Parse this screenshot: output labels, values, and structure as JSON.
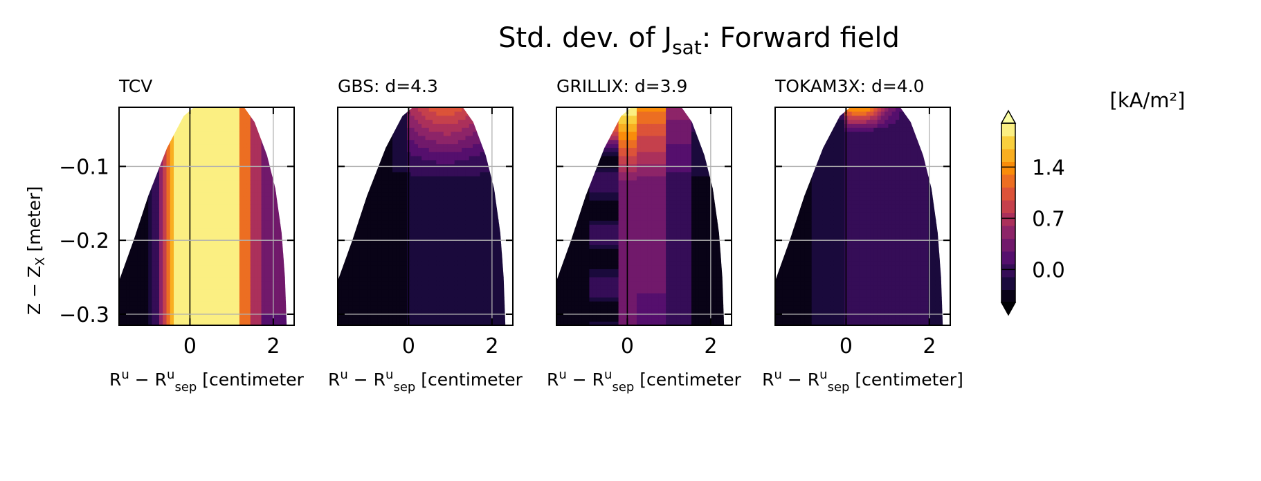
{
  "figure": {
    "title": "Std. dev. of J",
    "title_sub": "sat",
    "title_suffix": ": Forward field"
  },
  "colorbar": {
    "label": "[kA/m²]",
    "colormap": "inferno",
    "extend": "both",
    "ticks": [
      "1.4",
      "0.7",
      "0.0"
    ],
    "tick_values": [
      1.4,
      0.7,
      0.0
    ],
    "range": [
      -0.45,
      2.0
    ],
    "levels": 14
  },
  "axes_text": {
    "ylabel_main": "Z − Z",
    "ylabel_sub": "X",
    "ylabel_unit": " [meter]",
    "xlabel_main": "R",
    "xlabel_sup": "u",
    "xlabel_mid": " − R",
    "xlabel_sup2": "u",
    "xlabel_sub2": "sep",
    "xlabel_unit": " [centimeter]",
    "xlabel_unit_clipped": " [centimeter",
    "xticks": [
      "0",
      "2"
    ],
    "yticks": [
      "−0.1",
      "−0.2",
      "−0.3"
    ]
  },
  "chart_data": [
    {
      "type": "heatmap",
      "title": "TCV",
      "xlim": [
        -1.7,
        2.5
      ],
      "ylim": [
        -0.315,
        -0.02
      ],
      "x_ticks": [
        0,
        2
      ],
      "y_ticks": [
        -0.1,
        -0.2,
        -0.3
      ],
      "grid": true,
      "values_description_kA_m2": {
        "x_cm": [
          -1.5,
          -0.8,
          -0.5,
          0.0,
          0.5,
          1.0,
          1.3,
          1.6,
          2.0
        ],
        "z_m_-0.25_row": [
          -0.45,
          -0.1,
          1.3,
          2.0,
          2.0,
          2.0,
          1.2,
          0.5,
          0.2
        ]
      }
    },
    {
      "type": "heatmap",
      "title": "GBS: d=4.3",
      "xlim": [
        -1.7,
        2.5
      ],
      "ylim": [
        -0.315,
        -0.02
      ],
      "x_ticks": [
        0,
        2
      ],
      "y_ticks": [
        -0.1,
        -0.2,
        -0.3
      ],
      "grid": true,
      "values_description_kA_m2": {
        "x_cm": [
          -1.5,
          -0.5,
          0.0,
          0.5,
          1.0,
          2.0
        ],
        "z_m_-0.05_row": [
          -0.45,
          -0.3,
          0.3,
          0.8,
          0.8,
          0.3
        ],
        "z_m_-0.25_row": [
          -0.45,
          -0.4,
          -0.2,
          -0.15,
          -0.1,
          -0.2
        ]
      }
    },
    {
      "type": "heatmap",
      "title": "GRILLIX: d=3.9",
      "xlim": [
        -1.7,
        2.5
      ],
      "ylim": [
        -0.315,
        -0.02
      ],
      "x_ticks": [
        0,
        2
      ],
      "y_ticks": [
        -0.1,
        -0.2,
        -0.3
      ],
      "grid": true,
      "values_description_kA_m2": {
        "x_cm": [
          -1.5,
          -0.5,
          0.0,
          0.3,
          0.8,
          1.5,
          2.0
        ],
        "z_m_-0.05_row": [
          -0.4,
          0.5,
          2.0,
          1.4,
          1.0,
          0.5,
          0.2
        ],
        "z_m_-0.25_row": [
          -0.45,
          0.3,
          0.4,
          0.6,
          0.3,
          -0.1,
          -0.3
        ]
      }
    },
    {
      "type": "heatmap",
      "title": "TOKAM3X: d=4.0",
      "xlim": [
        -1.7,
        2.5
      ],
      "ylim": [
        -0.315,
        -0.02
      ],
      "x_ticks": [
        0,
        2
      ],
      "y_ticks": [
        -0.1,
        -0.2,
        -0.3
      ],
      "grid": true,
      "values_description_kA_m2": {
        "x_cm": [
          -1.5,
          0.0,
          0.3,
          1.0,
          2.0
        ],
        "z_m_-0.03_row": [
          -0.4,
          1.4,
          1.2,
          0.5,
          0.1
        ],
        "z_m_-0.25_row": [
          -0.3,
          -0.1,
          -0.05,
          -0.05,
          -0.2
        ]
      }
    }
  ]
}
